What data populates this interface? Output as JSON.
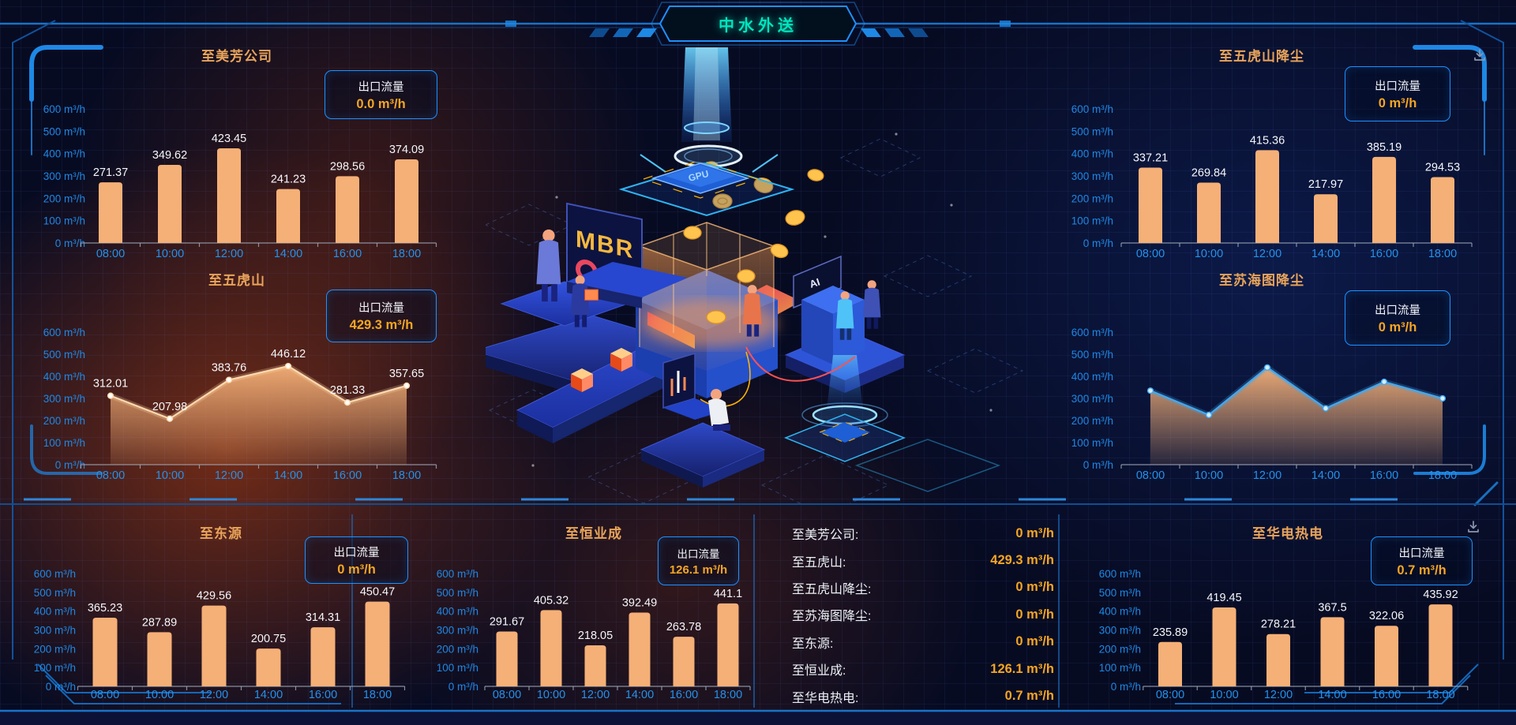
{
  "header": {
    "title": "中水外送"
  },
  "flow_box_label": "出口流量",
  "axis": {
    "y_ticks": [
      "600 m³/h",
      "500 m³/h",
      "400 m³/h",
      "300 m³/h",
      "200 m³/h",
      "100 m³/h",
      "0 m³/h"
    ],
    "categories": [
      "08:00",
      "10:00",
      "12:00",
      "14:00",
      "16:00",
      "18:00"
    ]
  },
  "panels": {
    "meifang": {
      "title": "至美芳公司",
      "flow_value": "0.0 m³/h"
    },
    "wuhushan": {
      "title": "至五虎山",
      "flow_value": "429.3 m³/h"
    },
    "wuhushan_dust": {
      "title": "至五虎山降尘",
      "flow_value": "0 m³/h"
    },
    "suhaitu_dust": {
      "title": "至苏海图降尘",
      "flow_value": "0 m³/h"
    },
    "dongyuan": {
      "title": "至东源",
      "flow_value": "0 m³/h"
    },
    "hengyecheng": {
      "title": "至恒业成",
      "flow_value": "126.1 m³/h"
    },
    "huadian": {
      "title": "至华电热电",
      "flow_value": "0.7 m³/h"
    }
  },
  "summary": {
    "rows": [
      {
        "label": "至美芳公司:",
        "value": "0 m³/h"
      },
      {
        "label": "至五虎山:",
        "value": "429.3 m³/h"
      },
      {
        "label": "至五虎山降尘:",
        "value": "0 m³/h"
      },
      {
        "label": "至苏海图降尘:",
        "value": "0 m³/h"
      },
      {
        "label": "至东源:",
        "value": "0 m³/h"
      },
      {
        "label": "至恒业成:",
        "value": "126.1 m³/h"
      },
      {
        "label": "至华电热电:",
        "value": "0.7 m³/h"
      }
    ]
  },
  "chart_data": [
    {
      "id": "meifang",
      "type": "bar",
      "title": "至美芳公司",
      "categories": [
        "08:00",
        "10:00",
        "12:00",
        "14:00",
        "16:00",
        "18:00"
      ],
      "values": [
        271.37,
        349.62,
        423.45,
        241.23,
        298.56,
        374.09
      ],
      "ylabel": "m³/h",
      "ylim": [
        0,
        600
      ],
      "value_labels": true
    },
    {
      "id": "wuhushan",
      "type": "area",
      "title": "至五虎山",
      "categories": [
        "08:00",
        "10:00",
        "12:00",
        "14:00",
        "16:00",
        "18:00"
      ],
      "values": [
        312.01,
        207.98,
        383.76,
        446.12,
        281.33,
        357.65
      ],
      "ylabel": "m³/h",
      "ylim": [
        0,
        600
      ],
      "value_labels": true,
      "line_color": "#FFD9AD",
      "marker_color": "#FFFFFF"
    },
    {
      "id": "wuhushan_dust",
      "type": "bar",
      "title": "至五虎山降尘",
      "categories": [
        "08:00",
        "10:00",
        "12:00",
        "14:00",
        "16:00",
        "18:00"
      ],
      "values": [
        337.21,
        269.84,
        415.36,
        217.97,
        385.19,
        294.53
      ],
      "ylabel": "m³/h",
      "ylim": [
        0,
        600
      ],
      "value_labels": true
    },
    {
      "id": "suhaitu_dust",
      "type": "area",
      "title": "至苏海图降尘",
      "categories": [
        "08:00",
        "10:00",
        "12:00",
        "14:00",
        "16:00",
        "18:00"
      ],
      "values": [
        335,
        225,
        440,
        255,
        375,
        300
      ],
      "ylabel": "m³/h",
      "ylim": [
        0,
        600
      ],
      "value_labels": false,
      "line_color": "#41A9F1",
      "marker_color": "#D6EEFF"
    },
    {
      "id": "dongyuan",
      "type": "bar",
      "title": "至东源",
      "categories": [
        "08:00",
        "10:00",
        "12:00",
        "14:00",
        "16:00",
        "18:00"
      ],
      "values": [
        365.23,
        287.89,
        429.56,
        200.75,
        314.31,
        450.47
      ],
      "ylabel": "m³/h",
      "ylim": [
        0,
        600
      ],
      "value_labels": true
    },
    {
      "id": "hengyecheng",
      "type": "bar",
      "title": "至恒业成",
      "categories": [
        "08:00",
        "10:00",
        "12:00",
        "14:00",
        "16:00",
        "18:00"
      ],
      "values": [
        291.67,
        405.32,
        218.05,
        392.49,
        263.78,
        441.1
      ],
      "ylabel": "m³/h",
      "ylim": [
        0,
        600
      ],
      "value_labels": true
    },
    {
      "id": "huadian",
      "type": "bar",
      "title": "至华电热电",
      "categories": [
        "08:00",
        "10:00",
        "12:00",
        "14:00",
        "16:00",
        "18:00"
      ],
      "values": [
        235.89,
        419.45,
        278.21,
        367.5,
        322.06,
        435.92
      ],
      "ylabel": "m³/h",
      "ylim": [
        0,
        600
      ],
      "value_labels": true
    }
  ],
  "icons": {
    "download": "download-icon"
  },
  "colors": {
    "accent_blue": "#1E90FF",
    "bar": "#F5B077",
    "value_gold": "#F5A623",
    "title_orange": "#E9A45A",
    "axis_blue": "#1E88E5",
    "title_teal": "#00E5BE"
  }
}
